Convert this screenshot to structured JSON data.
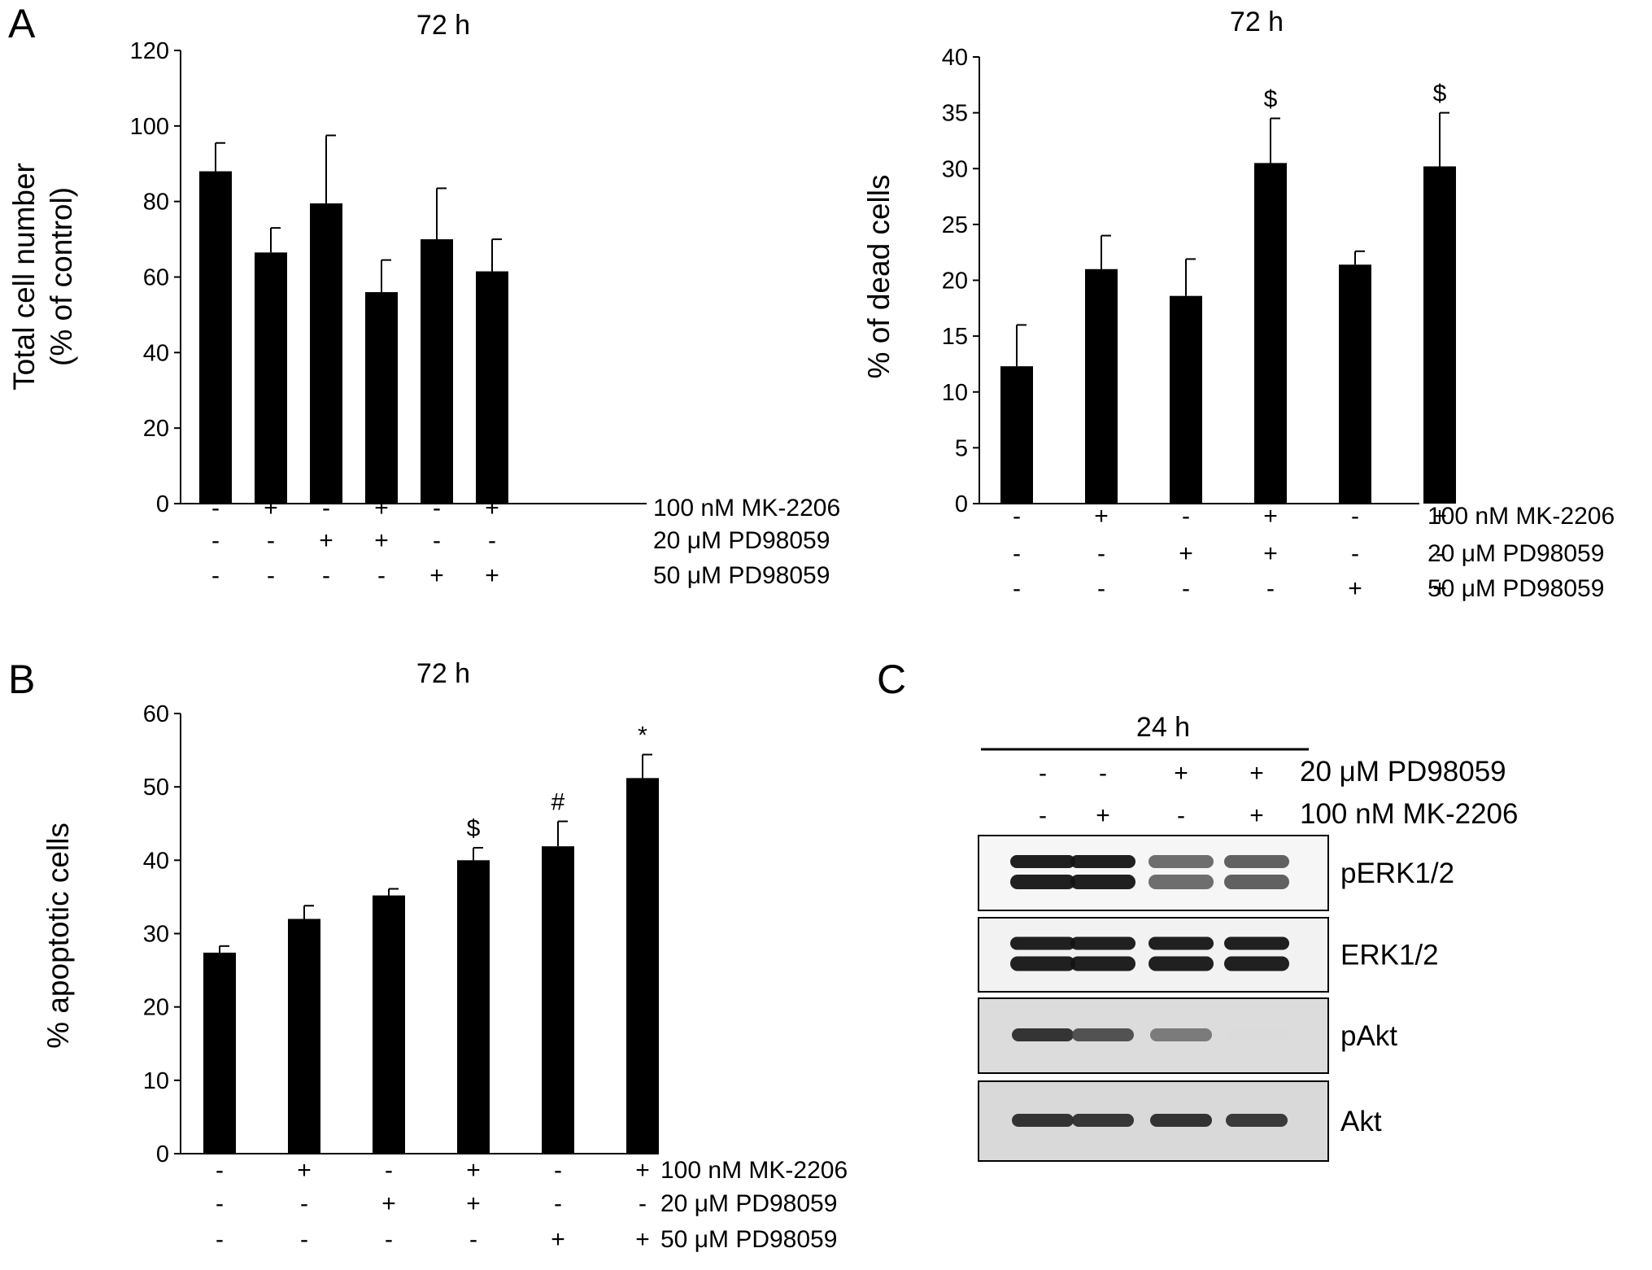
{
  "panels": [
    {
      "key": "A",
      "label": "A"
    },
    {
      "key": "B",
      "label": "B"
    },
    {
      "key": "C",
      "label": "C"
    }
  ],
  "chart_data": [
    {
      "id": "A1",
      "type": "bar",
      "title": "72 h",
      "ylabel": [
        "Total cell number",
        "(% of control)"
      ],
      "ylim": [
        0,
        120
      ],
      "yticks": [
        0,
        20,
        40,
        60,
        80,
        100,
        120
      ],
      "grid": false,
      "values": [
        88,
        66.5,
        79.5,
        56,
        70,
        61.5
      ],
      "errors": [
        7.5,
        6.5,
        18,
        8.5,
        13.5,
        8.5
      ],
      "annotations": [
        "",
        "",
        "",
        "",
        "",
        ""
      ],
      "conditions": [
        {
          "label": "100 nM MK-2206",
          "signs": [
            "-",
            "+",
            "-",
            "+",
            "-",
            "+"
          ]
        },
        {
          "label": "20 μM PD98059",
          "signs": [
            "-",
            "-",
            "+",
            "+",
            "-",
            "-"
          ]
        },
        {
          "label": "50 μM PD98059",
          "signs": [
            "-",
            "-",
            "-",
            "-",
            "+",
            "+"
          ]
        }
      ]
    },
    {
      "id": "A2",
      "type": "bar",
      "title": "72 h",
      "ylabel": [
        "% of dead cells"
      ],
      "ylim": [
        0,
        40
      ],
      "yticks": [
        0,
        5,
        10,
        15,
        20,
        25,
        30,
        35,
        40
      ],
      "grid": false,
      "values": [
        12.3,
        21,
        18.6,
        30.5,
        21.4,
        30.2
      ],
      "errors": [
        3.7,
        3,
        3.3,
        4,
        1.2,
        4.8
      ],
      "annotations": [
        "",
        "",
        "",
        "$",
        "",
        "$"
      ],
      "conditions": [
        {
          "label": "100 nM MK-2206",
          "signs": [
            "-",
            "+",
            "-",
            "+",
            "-",
            "+"
          ]
        },
        {
          "label": "20 μM PD98059",
          "signs": [
            "-",
            "-",
            "+",
            "+",
            "-",
            "-"
          ]
        },
        {
          "label": "50 μM PD98059",
          "signs": [
            "-",
            "-",
            "-",
            "-",
            "+",
            "+"
          ]
        }
      ]
    },
    {
      "id": "B",
      "type": "bar",
      "title": "72 h",
      "ylabel": [
        "% apoptotic cells"
      ],
      "ylim": [
        0,
        60
      ],
      "yticks": [
        0,
        10,
        20,
        30,
        40,
        50,
        60
      ],
      "grid": false,
      "values": [
        27.4,
        32,
        35.2,
        40,
        41.9,
        51.2
      ],
      "errors": [
        0.9,
        1.8,
        0.9,
        1.7,
        3.4,
        3.2
      ],
      "annotations": [
        "",
        "",
        "",
        "$",
        "#",
        "*"
      ],
      "conditions": [
        {
          "label": "100 nM MK-2206",
          "signs": [
            "-",
            "+",
            "-",
            "+",
            "-",
            "+"
          ]
        },
        {
          "label": "20 μM PD98059",
          "signs": [
            "-",
            "-",
            "+",
            "+",
            "-",
            "-"
          ]
        },
        {
          "label": "50 μM PD98059",
          "signs": [
            "-",
            "-",
            "-",
            "-",
            "+",
            "+"
          ]
        }
      ]
    }
  ],
  "blot": {
    "timepoint": "24 h",
    "conditions": [
      {
        "label": "20 μM PD98059",
        "signs": [
          "-",
          "-",
          "+",
          "+"
        ]
      },
      {
        "label": "100 nM MK-2206",
        "signs": [
          "-",
          "+",
          "-",
          "+"
        ]
      }
    ],
    "rows": [
      {
        "label": "pERK1/2",
        "intensity": [
          1,
          1,
          0.62,
          0.68
        ],
        "bg": "#f6f6f6",
        "bands": 2
      },
      {
        "label": "ERK1/2",
        "intensity": [
          1,
          1,
          1,
          1
        ],
        "bg": "#f2f2f2",
        "bands": 2
      },
      {
        "label": "pAkt",
        "intensity": [
          0.9,
          0.75,
          0.55,
          0.08
        ],
        "bg": "#dcdcdc",
        "bands": 1
      },
      {
        "label": "Akt",
        "intensity": [
          0.9,
          0.88,
          0.9,
          0.86
        ],
        "bg": "#d9d9d9",
        "bands": 1
      }
    ]
  }
}
